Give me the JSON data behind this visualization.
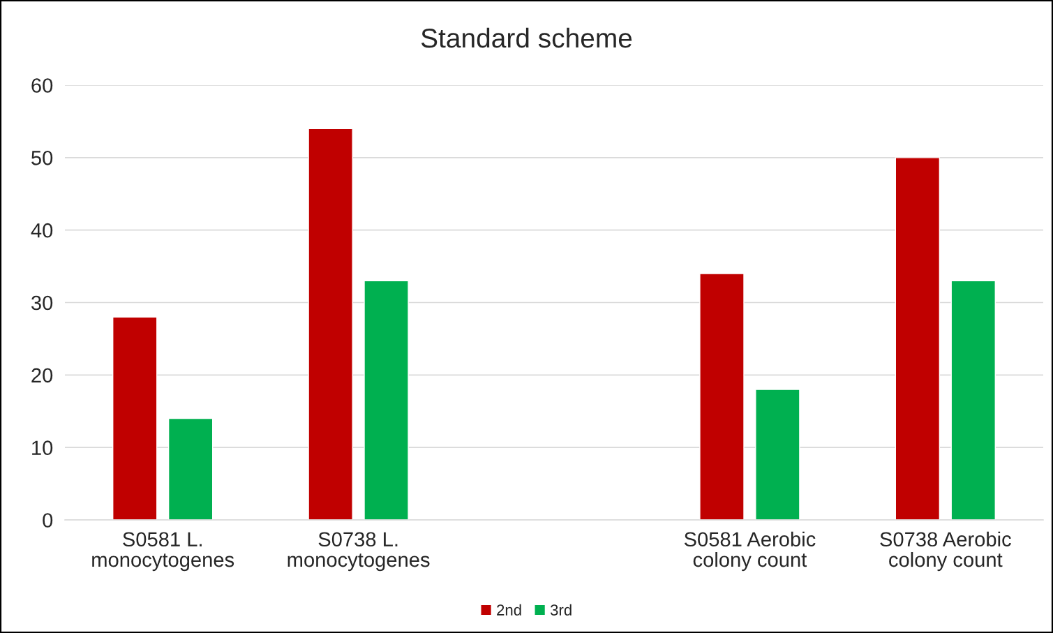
{
  "chart_data": {
    "type": "bar",
    "title": "Standard scheme",
    "categories": [
      "S0581 L.\nmonocytogenes",
      "S0738 L.\nmonocytogenes",
      null,
      "S0581 Aerobic\ncolony count",
      "S0738 Aerobic\ncolony count"
    ],
    "series": [
      {
        "name": "2nd",
        "color": "#c00000",
        "values": [
          28,
          54,
          null,
          34,
          50
        ]
      },
      {
        "name": "3rd",
        "color": "#00b050",
        "values": [
          14,
          33,
          null,
          18,
          33
        ]
      }
    ],
    "ylim": [
      0,
      60
    ],
    "yticks": [
      0,
      10,
      20,
      30,
      40,
      50,
      60
    ],
    "grid": "y",
    "legend": "bottom"
  }
}
